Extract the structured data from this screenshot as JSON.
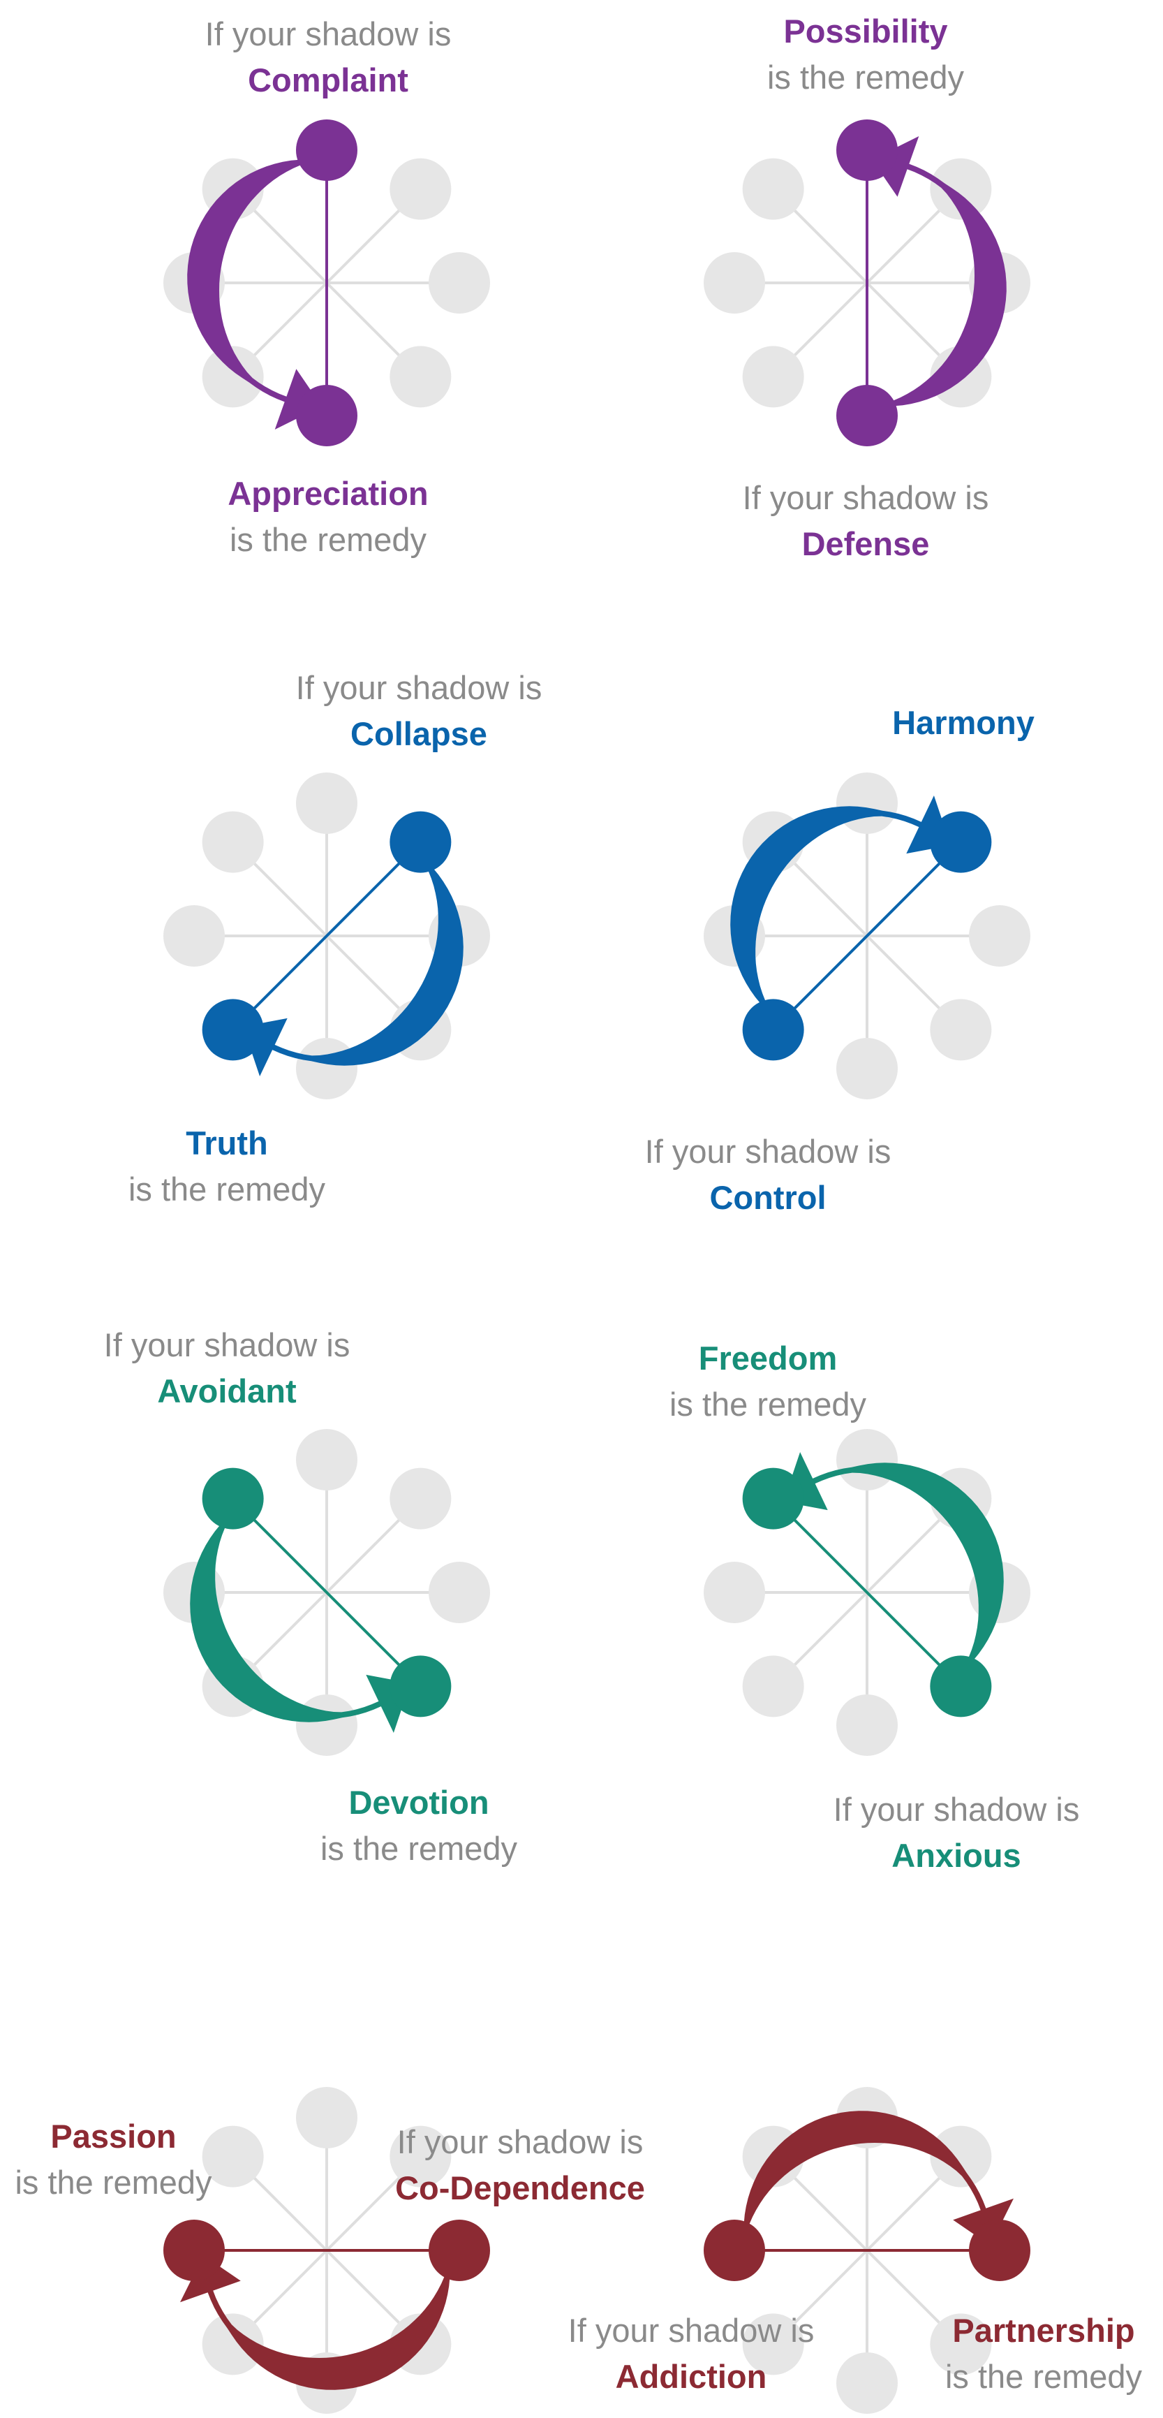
{
  "colors": {
    "purple": "#7b3294",
    "blue": "#0a64ac",
    "teal": "#178e78",
    "red": "#8c2a33",
    "node_gray": "#e6e6e6",
    "spoke_gray": "#dedede",
    "text_gray": "#8a8a8a"
  },
  "diagrams": [
    {
      "id": "complaint",
      "color": "purple",
      "active": [
        0,
        4
      ],
      "arrow_dir": "ccw"
    },
    {
      "id": "defense",
      "color": "purple",
      "active": [
        4,
        0
      ],
      "arrow_dir": "ccw"
    },
    {
      "id": "collapse",
      "color": "blue",
      "active": [
        1,
        5
      ],
      "arrow_dir": "cw"
    },
    {
      "id": "control",
      "color": "blue",
      "active": [
        5,
        1
      ],
      "arrow_dir": "cw"
    },
    {
      "id": "avoidant",
      "color": "teal",
      "active": [
        7,
        3
      ],
      "arrow_dir": "ccw"
    },
    {
      "id": "anxious",
      "color": "teal",
      "active": [
        3,
        7
      ],
      "arrow_dir": "ccw"
    },
    {
      "id": "codependence",
      "color": "red",
      "active": [
        2,
        6
      ],
      "arrow_dir": "cw"
    },
    {
      "id": "addiction",
      "color": "red",
      "active": [
        6,
        2
      ],
      "arrow_dir": "cw"
    }
  ],
  "labels": {
    "complaint": {
      "line1": "If your shadow is",
      "line2": "Complaint"
    },
    "appreciation": {
      "line1": "Appreciation",
      "line2": "is the remedy"
    },
    "possibility": {
      "line1": "Possibility",
      "line2": "is the remedy"
    },
    "defense": {
      "line1": "If your shadow is",
      "line2": "Defense"
    },
    "collapse": {
      "line1": "If your shadow is",
      "line2": "Collapse"
    },
    "truth": {
      "line1": "Truth",
      "line2": "is the remedy"
    },
    "harmony": {
      "line1": "Harmony"
    },
    "control": {
      "line1": "If your shadow is",
      "line2": "Control"
    },
    "avoidant": {
      "line1": "If your shadow is",
      "line2": "Avoidant"
    },
    "devotion": {
      "line1": "Devotion",
      "line2": "is the remedy"
    },
    "freedom": {
      "line1": "Freedom",
      "line2": "is the remedy"
    },
    "anxious": {
      "line1": "If your shadow is",
      "line2": "Anxious"
    },
    "passion": {
      "line1": "Passion",
      "line2": "is the remedy"
    },
    "codependence": {
      "line1": "If your shadow is",
      "line2": "Co-Dependence"
    },
    "addiction": {
      "line1": "If your shadow is",
      "line2": "Addiction"
    },
    "partnership": {
      "line1": "Partnership",
      "line2": "is the remedy"
    }
  }
}
